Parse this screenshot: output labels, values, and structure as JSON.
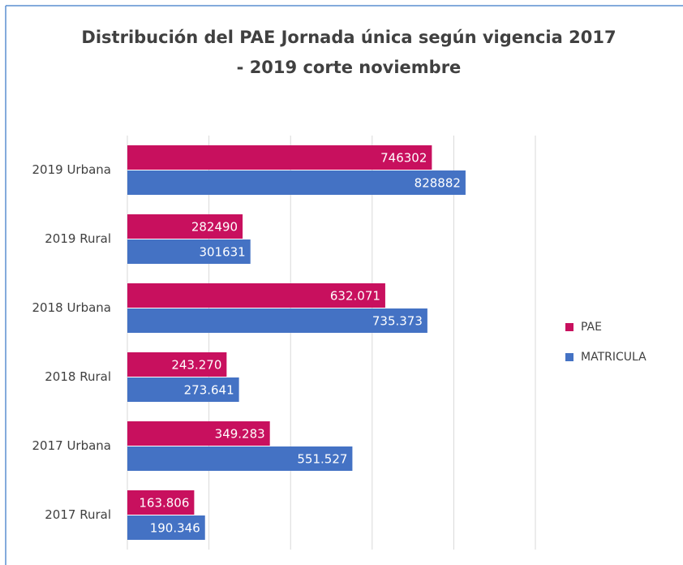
{
  "chart_data": {
    "type": "bar",
    "orientation": "horizontal",
    "title": [
      "Distribución del PAE Jornada única según vigencia 2017",
      "- 2019 corte noviembre"
    ],
    "categories": [
      "2019 Urbana",
      "2019 Rural",
      "2018 Urbana",
      "2018 Rural",
      "2017 Urbana",
      "2017 Rural"
    ],
    "series": [
      {
        "name": "PAE",
        "color": "#c8105e",
        "values": [
          746302,
          282490,
          632071,
          243270,
          349283,
          163806
        ],
        "value_labels": [
          "746302",
          "282490",
          "632.071",
          "243.270",
          "349.283",
          "163.806"
        ]
      },
      {
        "name": "MATRICULA",
        "color": "#4472c4",
        "values": [
          828882,
          301631,
          735373,
          273641,
          551527,
          190346
        ],
        "value_labels": [
          "828882",
          "301631",
          "735.373",
          "273.641",
          "551.527",
          "190.346"
        ]
      }
    ],
    "xlim": [
      0,
      1000000
    ],
    "xticks": [
      0,
      200000,
      400000,
      600000,
      800000,
      1000000
    ],
    "grid": true,
    "legend": "right"
  }
}
